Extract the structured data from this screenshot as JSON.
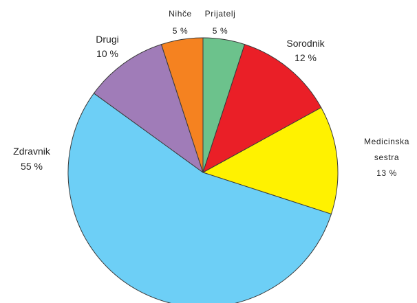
{
  "chart_data": {
    "type": "pie",
    "title": "",
    "units": "%",
    "slices": [
      {
        "label": "Prijatelj",
        "value": 5,
        "display": "5 %",
        "color": "#6cc28c"
      },
      {
        "label": "Sorodnik",
        "value": 12,
        "display": "12 %",
        "color": "#ea1f27"
      },
      {
        "label": "Medicinska sestra",
        "label_lines": [
          "Medicinska",
          "sestra"
        ],
        "value": 13,
        "display": "13 %",
        "color": "#fff200"
      },
      {
        "label": "Zdravnik",
        "value": 55,
        "display": "55 %",
        "color": "#6dcff6"
      },
      {
        "label": "Drugi",
        "value": 10,
        "display": "10 %",
        "color": "#a07cb8"
      },
      {
        "label": "Nihče",
        "value": 5,
        "display": "5 %",
        "color": "#f58220"
      }
    ]
  }
}
